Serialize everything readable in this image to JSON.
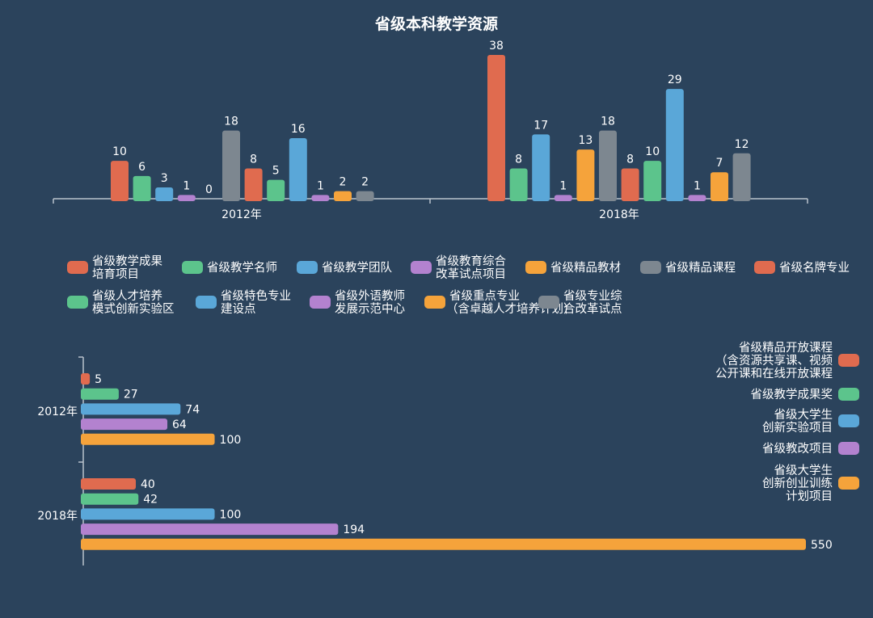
{
  "colors": {
    "background": "#2b435c",
    "red": "#e06b4f",
    "green": "#5cc48c",
    "blue": "#5aa7d8",
    "purple": "#b382cf",
    "orange": "#f5a33b",
    "gray": "#7d8790",
    "axis": "#b9c3cc",
    "text": "#ffffff"
  },
  "chart_data": [
    {
      "type": "bar",
      "title": "省级本科教学资源",
      "categories": [
        "2012年",
        "2018年"
      ],
      "ylim": [
        0,
        38
      ],
      "grid": false,
      "legend_position": "bottom",
      "series": [
        {
          "name": "省级教学成果培育项目",
          "legend": [
            "省级教学成果",
            "培育项目"
          ],
          "color": "red",
          "values": [
            10,
            38
          ]
        },
        {
          "name": "省级教学名师",
          "legend": [
            "省级教学名师"
          ],
          "color": "green",
          "values": [
            6,
            8
          ]
        },
        {
          "name": "省级教学团队",
          "legend": [
            "省级教学团队"
          ],
          "color": "blue",
          "values": [
            3,
            17
          ]
        },
        {
          "name": "省级教育综合改革试点项目",
          "legend": [
            "省级教育综合",
            "改革试点项目"
          ],
          "color": "purple",
          "values": [
            1,
            1
          ]
        },
        {
          "name": "省级精品教材",
          "legend": [
            "省级精品教材"
          ],
          "color": "orange",
          "values": [
            0,
            13
          ]
        },
        {
          "name": "省级精品课程",
          "legend": [
            "省级精品课程"
          ],
          "color": "gray",
          "values": [
            18,
            18
          ]
        },
        {
          "name": "省级名牌专业",
          "legend": [
            "省级名牌专业"
          ],
          "color": "red",
          "values": [
            8,
            8
          ]
        },
        {
          "name": "省级人才培养模式创新实验区",
          "legend": [
            "省级人才培养",
            "模式创新实验区"
          ],
          "color": "green",
          "values": [
            5,
            10
          ]
        },
        {
          "name": "省级特色专业建设点",
          "legend": [
            "省级特色专业",
            "建设点"
          ],
          "color": "blue",
          "values": [
            16,
            29
          ]
        },
        {
          "name": "省级外语教师发展示范中心",
          "legend": [
            "省级外语教师",
            "发展示范中心"
          ],
          "color": "purple",
          "values": [
            1,
            1
          ]
        },
        {
          "name": "省级重点专业（含卓越人才培养计划）",
          "legend": [
            "省级重点专业",
            "（含卓越人才培养计划）"
          ],
          "color": "orange",
          "values": [
            2,
            7
          ]
        },
        {
          "name": "省级专业综合改革试点",
          "legend": [
            "省级专业综",
            "合改革试点"
          ],
          "color": "gray",
          "values": [
            2,
            12
          ]
        }
      ]
    },
    {
      "type": "bar",
      "orientation": "horizontal",
      "title": "",
      "categories": [
        "2012年",
        "2018年"
      ],
      "xlim": [
        0,
        550
      ],
      "grid": false,
      "legend_position": "right",
      "series": [
        {
          "name": "省级精品开放课程（含资源共享课、视频公开课和在线开放课程）",
          "legend": [
            "省级精品开放课程",
            "（含资源共享课、视频",
            "公开课和在线开放课程"
          ],
          "color": "red",
          "values": [
            5,
            40
          ]
        },
        {
          "name": "省级教学成果奖",
          "legend": [
            "省级教学成果奖"
          ],
          "color": "green",
          "values": [
            27,
            42
          ]
        },
        {
          "name": "省级大学生创新实验项目",
          "legend": [
            "省级大学生",
            "创新实验项目"
          ],
          "color": "blue",
          "values": [
            74,
            100
          ]
        },
        {
          "name": "省级教改项目",
          "legend": [
            "省级教改项目"
          ],
          "color": "purple",
          "values": [
            64,
            194
          ]
        },
        {
          "name": "省级大学生创新创业训练计划项目",
          "legend": [
            "省级大学生",
            "创新创业训练",
            "计划项目"
          ],
          "color": "orange",
          "values": [
            100,
            550
          ]
        }
      ]
    }
  ]
}
